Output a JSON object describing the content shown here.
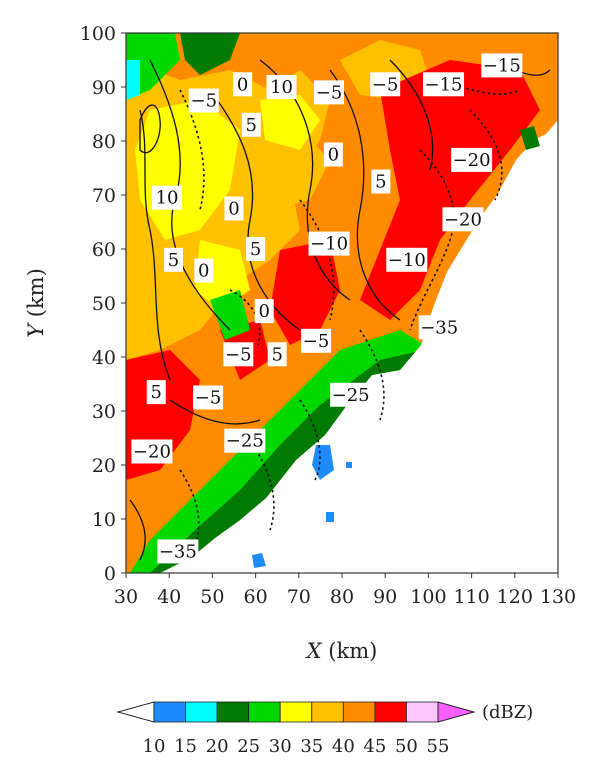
{
  "chart_data": {
    "type": "heatmap",
    "title": "",
    "xlabel": {
      "var": "X",
      "unit": " (km)"
    },
    "ylabel": {
      "var": "Y",
      "unit": " (km)"
    },
    "xlim": [
      30,
      130
    ],
    "ylim": [
      0,
      100
    ],
    "xticks": [
      "30",
      "40",
      "50",
      "60",
      "70",
      "80",
      "90",
      "100",
      "110",
      "120",
      "130"
    ],
    "yticks": [
      "0",
      "10",
      "20",
      "30",
      "40",
      "50",
      "60",
      "70",
      "80",
      "90",
      "100"
    ],
    "colorbar": {
      "unit": "(dBZ)",
      "labels": [
        "10",
        "15",
        "20",
        "25",
        "30",
        "35",
        "40",
        "45",
        "50",
        "55"
      ],
      "colors": [
        "#ffffff",
        "#1e8cff",
        "#00ffff",
        "#007a00",
        "#00d800",
        "#ffff00",
        "#ffc000",
        "#ff8c00",
        "#ff0000",
        "#ffc8ff",
        "#ff60ff"
      ]
    },
    "contour_labels": [
      {
        "text": "0",
        "x": 57,
        "y": 90.5
      },
      {
        "text": "10",
        "x": 66,
        "y": 90
      },
      {
        "text": "−5",
        "x": 48,
        "y": 87.5
      },
      {
        "text": "−5",
        "x": 77,
        "y": 89
      },
      {
        "text": "−5",
        "x": 90,
        "y": 90.5
      },
      {
        "text": "−15",
        "x": 103.5,
        "y": 90.5
      },
      {
        "text": "−15",
        "x": 117,
        "y": 94
      },
      {
        "text": "5",
        "x": 59,
        "y": 83
      },
      {
        "text": "0",
        "x": 78,
        "y": 77.5
      },
      {
        "text": "−20",
        "x": 110,
        "y": 76.5
      },
      {
        "text": "5",
        "x": 89,
        "y": 72.5
      },
      {
        "text": "10",
        "x": 39.5,
        "y": 69.5
      },
      {
        "text": "0",
        "x": 55,
        "y": 67.5
      },
      {
        "text": "−20",
        "x": 108,
        "y": 65.5
      },
      {
        "text": "−10",
        "x": 77,
        "y": 61
      },
      {
        "text": "5",
        "x": 60,
        "y": 60
      },
      {
        "text": "−10",
        "x": 95,
        "y": 58
      },
      {
        "text": "5",
        "x": 41,
        "y": 58
      },
      {
        "text": "0",
        "x": 48,
        "y": 56
      },
      {
        "text": "0",
        "x": 62,
        "y": 48.5
      },
      {
        "text": "−35",
        "x": 102.5,
        "y": 45.5
      },
      {
        "text": "−5",
        "x": 74,
        "y": 43
      },
      {
        "text": "−5",
        "x": 56,
        "y": 40.5
      },
      {
        "text": "5",
        "x": 65,
        "y": 40.5
      },
      {
        "text": "5",
        "x": 37,
        "y": 33.5
      },
      {
        "text": "−5",
        "x": 49,
        "y": 32.5
      },
      {
        "text": "−25",
        "x": 82,
        "y": 33
      },
      {
        "text": "−25",
        "x": 57.5,
        "y": 24.5
      },
      {
        "text": "−20",
        "x": 36,
        "y": 22.5
      },
      {
        "text": "−35",
        "x": 42,
        "y": 4
      }
    ]
  }
}
